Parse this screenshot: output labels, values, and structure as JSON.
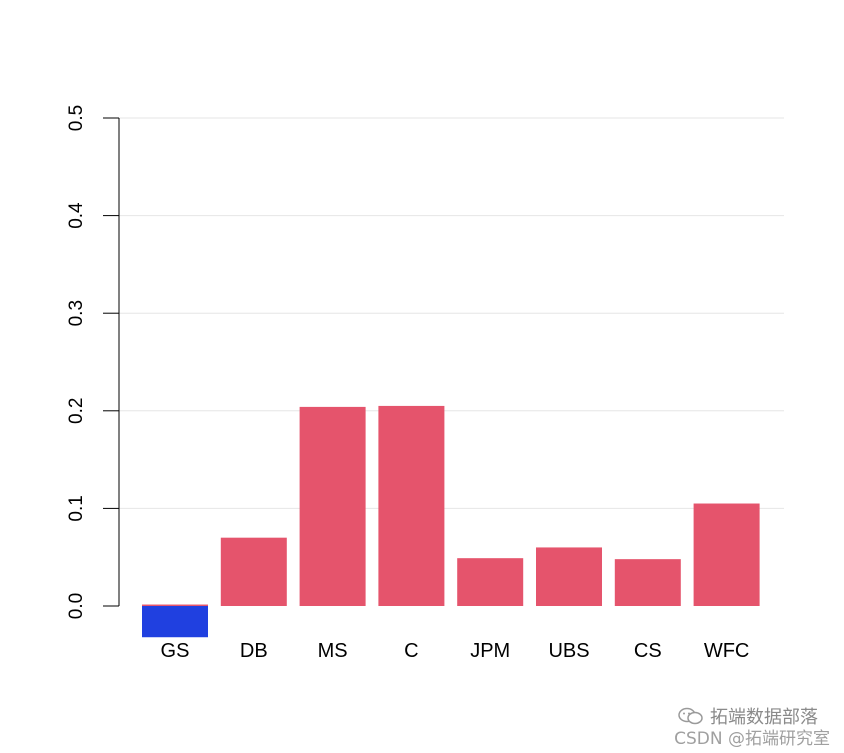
{
  "chart_data": {
    "type": "bar",
    "categories": [
      "GS",
      "DB",
      "MS",
      "C",
      "JPM",
      "UBS",
      "CS",
      "WFC"
    ],
    "series": [
      {
        "values": [
          0.0015,
          0.07,
          0.204,
          0.205,
          0.049,
          0.06,
          0.048,
          0.105
        ]
      },
      {
        "values": [
          -0.032,
          0,
          0,
          0,
          0,
          0,
          0,
          0
        ]
      }
    ],
    "y_ticks": [
      "0.0",
      "0.1",
      "0.2",
      "0.3",
      "0.4",
      "0.5"
    ],
    "ylim": [
      0,
      0.5
    ],
    "grid": true
  },
  "colors": {
    "positive": "#e5546c",
    "negative": "#2040e0",
    "grid": "#e6e6e6",
    "axis": "#000000"
  },
  "watermark": {
    "line1": "拓端数据部落",
    "line2": "CSDN @拓端研究室",
    "icon": "wechat-icon"
  }
}
